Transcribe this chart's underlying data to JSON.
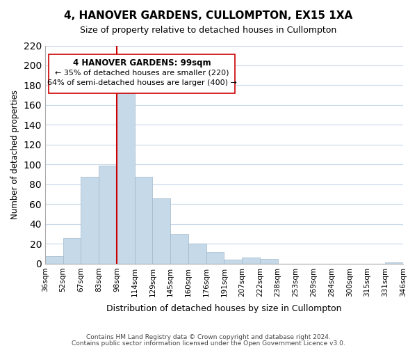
{
  "title": "4, HANOVER GARDENS, CULLOMPTON, EX15 1XA",
  "subtitle": "Size of property relative to detached houses in Cullompton",
  "xlabel": "Distribution of detached houses by size in Cullompton",
  "ylabel": "Number of detached properties",
  "bar_color": "#c5d9e8",
  "bar_edgecolor": "#a0b8cc",
  "tick_labels": [
    "36sqm",
    "52sqm",
    "67sqm",
    "83sqm",
    "98sqm",
    "114sqm",
    "129sqm",
    "145sqm",
    "160sqm",
    "176sqm",
    "191sqm",
    "207sqm",
    "222sqm",
    "238sqm",
    "253sqm",
    "269sqm",
    "284sqm",
    "300sqm",
    "315sqm",
    "331sqm",
    "346sqm"
  ],
  "bar_heights": [
    8,
    26,
    88,
    99,
    175,
    88,
    66,
    30,
    20,
    12,
    4,
    6,
    5,
    0,
    0,
    0,
    0,
    0,
    0,
    1
  ],
  "vline_x": 4,
  "vline_color": "#cc0000",
  "ylim": [
    0,
    220
  ],
  "yticks": [
    0,
    20,
    40,
    60,
    80,
    100,
    120,
    140,
    160,
    180,
    200,
    220
  ],
  "annotation_title": "4 HANOVER GARDENS: 99sqm",
  "annotation_line1": "← 35% of detached houses are smaller (220)",
  "annotation_line2": "64% of semi-detached houses are larger (400) →",
  "footnote1": "Contains HM Land Registry data © Crown copyright and database right 2024.",
  "footnote2": "Contains public sector information licensed under the Open Government Licence v3.0.",
  "background_color": "#ffffff",
  "grid_color": "#c8d8e8"
}
